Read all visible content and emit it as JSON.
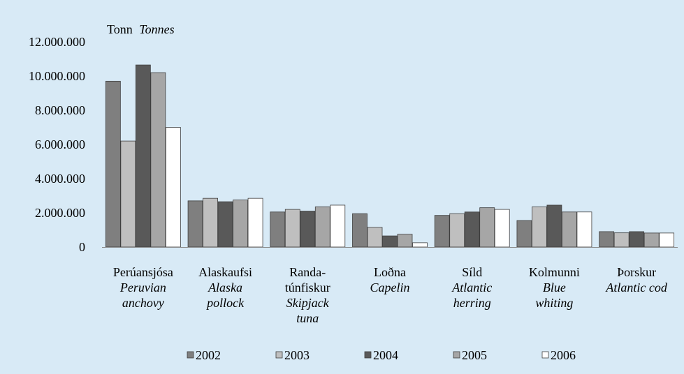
{
  "chart_data": {
    "type": "bar",
    "unit_label": {
      "is": "Tonn",
      "en": "Tonnes"
    },
    "categories": [
      {
        "is": [
          "Perúansjósa"
        ],
        "en": [
          "Peruvian",
          "anchovy"
        ]
      },
      {
        "is": [
          "Alaskaufsi"
        ],
        "en": [
          "Alaska",
          "pollock"
        ]
      },
      {
        "is": [
          "Randa-",
          "túnfiskur"
        ],
        "en": [
          "Skipjack",
          "tuna"
        ]
      },
      {
        "is": [
          "Loðna"
        ],
        "en": [
          "Capelin"
        ]
      },
      {
        "is": [
          "Síld"
        ],
        "en": [
          "Atlantic",
          "herring"
        ]
      },
      {
        "is": [
          "Kolmunni"
        ],
        "en": [
          "Blue",
          "whiting"
        ]
      },
      {
        "is": [
          "Þorskur"
        ],
        "en": [
          "Atlantic cod"
        ]
      }
    ],
    "series": [
      {
        "name": "2002",
        "color": "#7f7f7f",
        "values": [
          9700000,
          2700000,
          2050000,
          1950000,
          1850000,
          1550000,
          900000
        ]
      },
      {
        "name": "2003",
        "color": "#bfbfbf",
        "values": [
          6200000,
          2850000,
          2200000,
          1150000,
          1950000,
          2350000,
          830000
        ]
      },
      {
        "name": "2004",
        "color": "#595959",
        "values": [
          10650000,
          2650000,
          2100000,
          650000,
          2050000,
          2450000,
          900000
        ]
      },
      {
        "name": "2005",
        "color": "#a6a6a6",
        "values": [
          10200000,
          2750000,
          2350000,
          750000,
          2300000,
          2050000,
          820000
        ]
      },
      {
        "name": "2006",
        "color": "#ffffff",
        "values": [
          7000000,
          2850000,
          2450000,
          250000,
          2200000,
          2050000,
          820000
        ]
      }
    ],
    "y_ticks": [
      "0",
      "2.000.000",
      "4.000.000",
      "6.000.000",
      "8.000.000",
      "10.000.000",
      "12.000.000"
    ],
    "ylim": [
      0,
      12000000
    ],
    "grid": false,
    "legend_position": "bottom"
  }
}
